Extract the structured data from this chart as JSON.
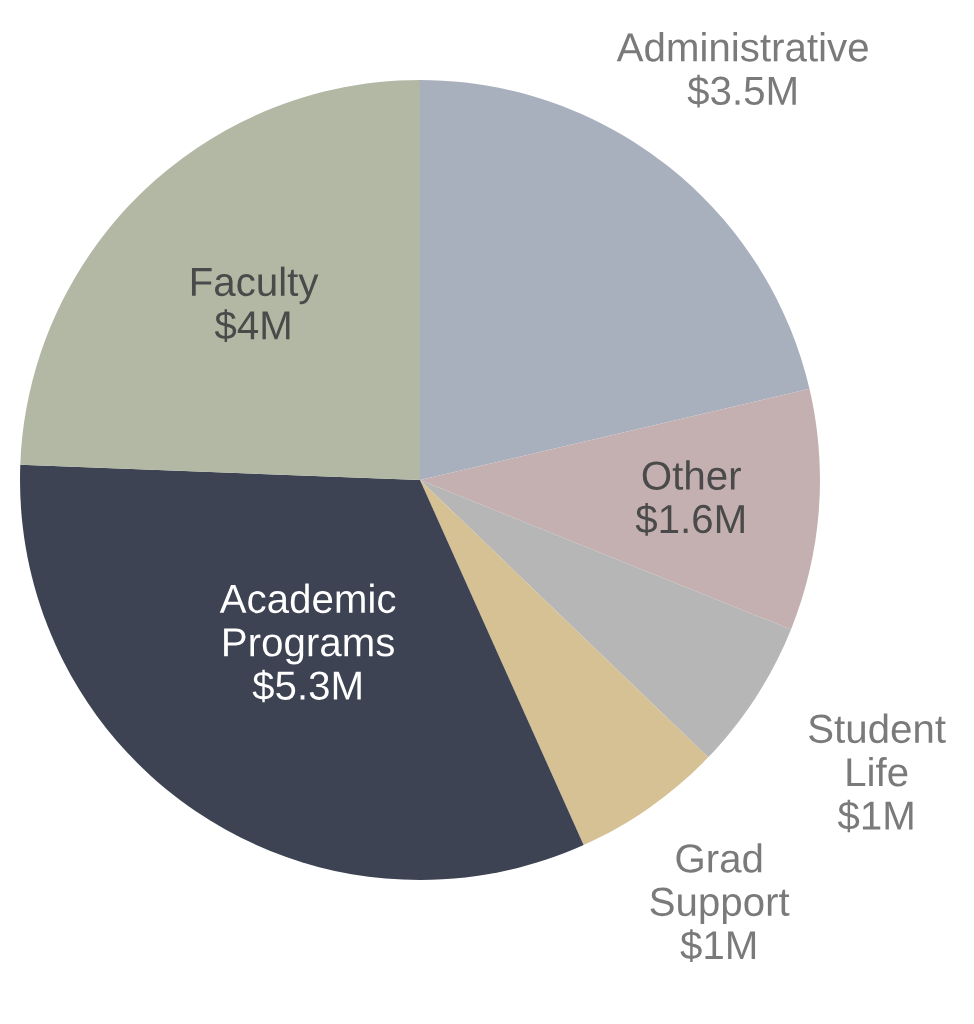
{
  "chart_data": {
    "type": "pie",
    "categories": [
      "Administrative",
      "Other",
      "Student\nLife",
      "Grad\nSupport",
      "Academic\nPrograms",
      "Faculty"
    ],
    "values": [
      3.5,
      1.6,
      1,
      1,
      5.3,
      4
    ],
    "value_labels": [
      "$3.5M",
      "$1.6M",
      "$1M",
      "$1M",
      "$5.3M",
      "$4M"
    ],
    "colors": [
      "#a9b0bd",
      "#c4b0b0",
      "#b6b6b6",
      "#d6c195",
      "#3d4352",
      "#b2b8a4"
    ]
  }
}
